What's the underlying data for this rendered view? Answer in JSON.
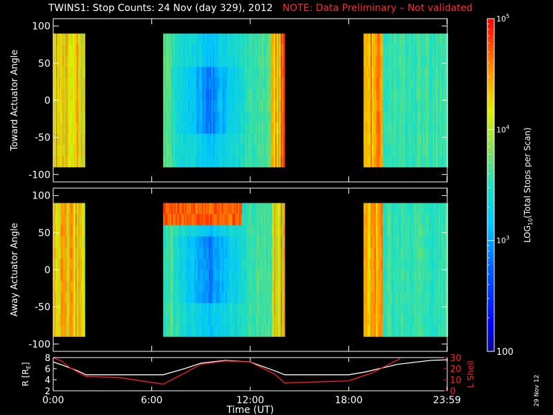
{
  "figure": {
    "title": "TWINS1: Stop Counts: 24 Nov (day 329), 2012",
    "note": "NOTE: Data Preliminary – Not validated",
    "stamp": "29 Nov 12",
    "colors": {
      "background": "#000000",
      "note": "#ff2a2a",
      "r_trace": "#ffffff",
      "l_trace": "#ff2020"
    }
  },
  "chart_data": [
    {
      "type": "heatmap",
      "panel": "toward",
      "ylabel": "Toward Actuator Angle",
      "ylim": [
        -110,
        110
      ],
      "yticks": [
        100,
        50,
        0,
        -50,
        -100
      ],
      "angle_range": [
        -90,
        90
      ],
      "xlim_hours": [
        0,
        24
      ],
      "data_intervals_hours": [
        [
          -0.2,
          1.9
        ],
        [
          6.7,
          14.1
        ],
        [
          18.9,
          24.2
        ]
      ],
      "colorscale": "log10, rainbow (blue low → red high)"
    },
    {
      "type": "heatmap",
      "panel": "away",
      "ylabel": "Away Actuator Angle",
      "ylim": [
        -110,
        110
      ],
      "yticks": [
        100,
        50,
        0,
        -50,
        -100
      ],
      "angle_range": [
        -90,
        90
      ],
      "xlim_hours": [
        0,
        24
      ],
      "data_intervals_hours": [
        [
          -0.2,
          1.9
        ],
        [
          6.7,
          14.1
        ],
        [
          18.9,
          24.2
        ]
      ],
      "colorscale": "log10, rainbow (blue low → red high)"
    },
    {
      "type": "line",
      "panel": "ephemeris",
      "ylabel_left": "R [R",
      "ylabel_left_sub": "E",
      "ylabel_left_end": "]",
      "ylabel_right": "L Shell",
      "xlabel": "Time (UT)",
      "xtick_labels": [
        "0:00",
        "6:00",
        "12:00",
        "18:00",
        "23:59"
      ],
      "xticks_hours": [
        0,
        6,
        12,
        18,
        23.983
      ],
      "ylim_left": [
        2,
        8
      ],
      "yticks_left": [
        8,
        6,
        4,
        2
      ],
      "ylim_right": [
        0,
        30
      ],
      "yticks_right": [
        30,
        20,
        10,
        0
      ],
      "series": [
        {
          "axis": "left",
          "color": "#ffffff",
          "x_hours": [
            0,
            0.5,
            1.5,
            2,
            4,
            6.7,
            8,
            9,
            10.5,
            12,
            13.5,
            14.1,
            16,
            18,
            19,
            21,
            23,
            24
          ],
          "values": [
            7.2,
            6.7,
            5.6,
            4.9,
            4.9,
            4.9,
            6.0,
            7.0,
            7.5,
            7.2,
            5.6,
            4.9,
            4.9,
            4.9,
            5.4,
            6.8,
            7.5,
            7.6
          ]
        },
        {
          "axis": "right",
          "color": "#ff2020",
          "x_hours": [
            0,
            0.5,
            1,
            2,
            4,
            6.7,
            8,
            9,
            10.5,
            12,
            13.5,
            14.1,
            16,
            18,
            19.4,
            21,
            21.2
          ],
          "values": [
            30,
            27,
            21,
            13,
            12,
            6,
            16,
            24,
            27,
            26,
            15,
            7,
            8,
            9,
            16,
            28,
            31
          ]
        }
      ]
    },
    {
      "type": "heatmap",
      "panel": "colorbar",
      "label": "LOG",
      "label_sub": "10",
      "label_end": "(Total Stops per Scan)",
      "zlim": [
        100,
        100000
      ],
      "ticks": [
        {
          "value": 100,
          "label": "100"
        },
        {
          "value": 1000,
          "label": "10",
          "sup": "3"
        },
        {
          "value": 10000,
          "label": "10",
          "sup": "4"
        },
        {
          "value": 100000,
          "label": "10",
          "sup": "5"
        }
      ]
    }
  ]
}
